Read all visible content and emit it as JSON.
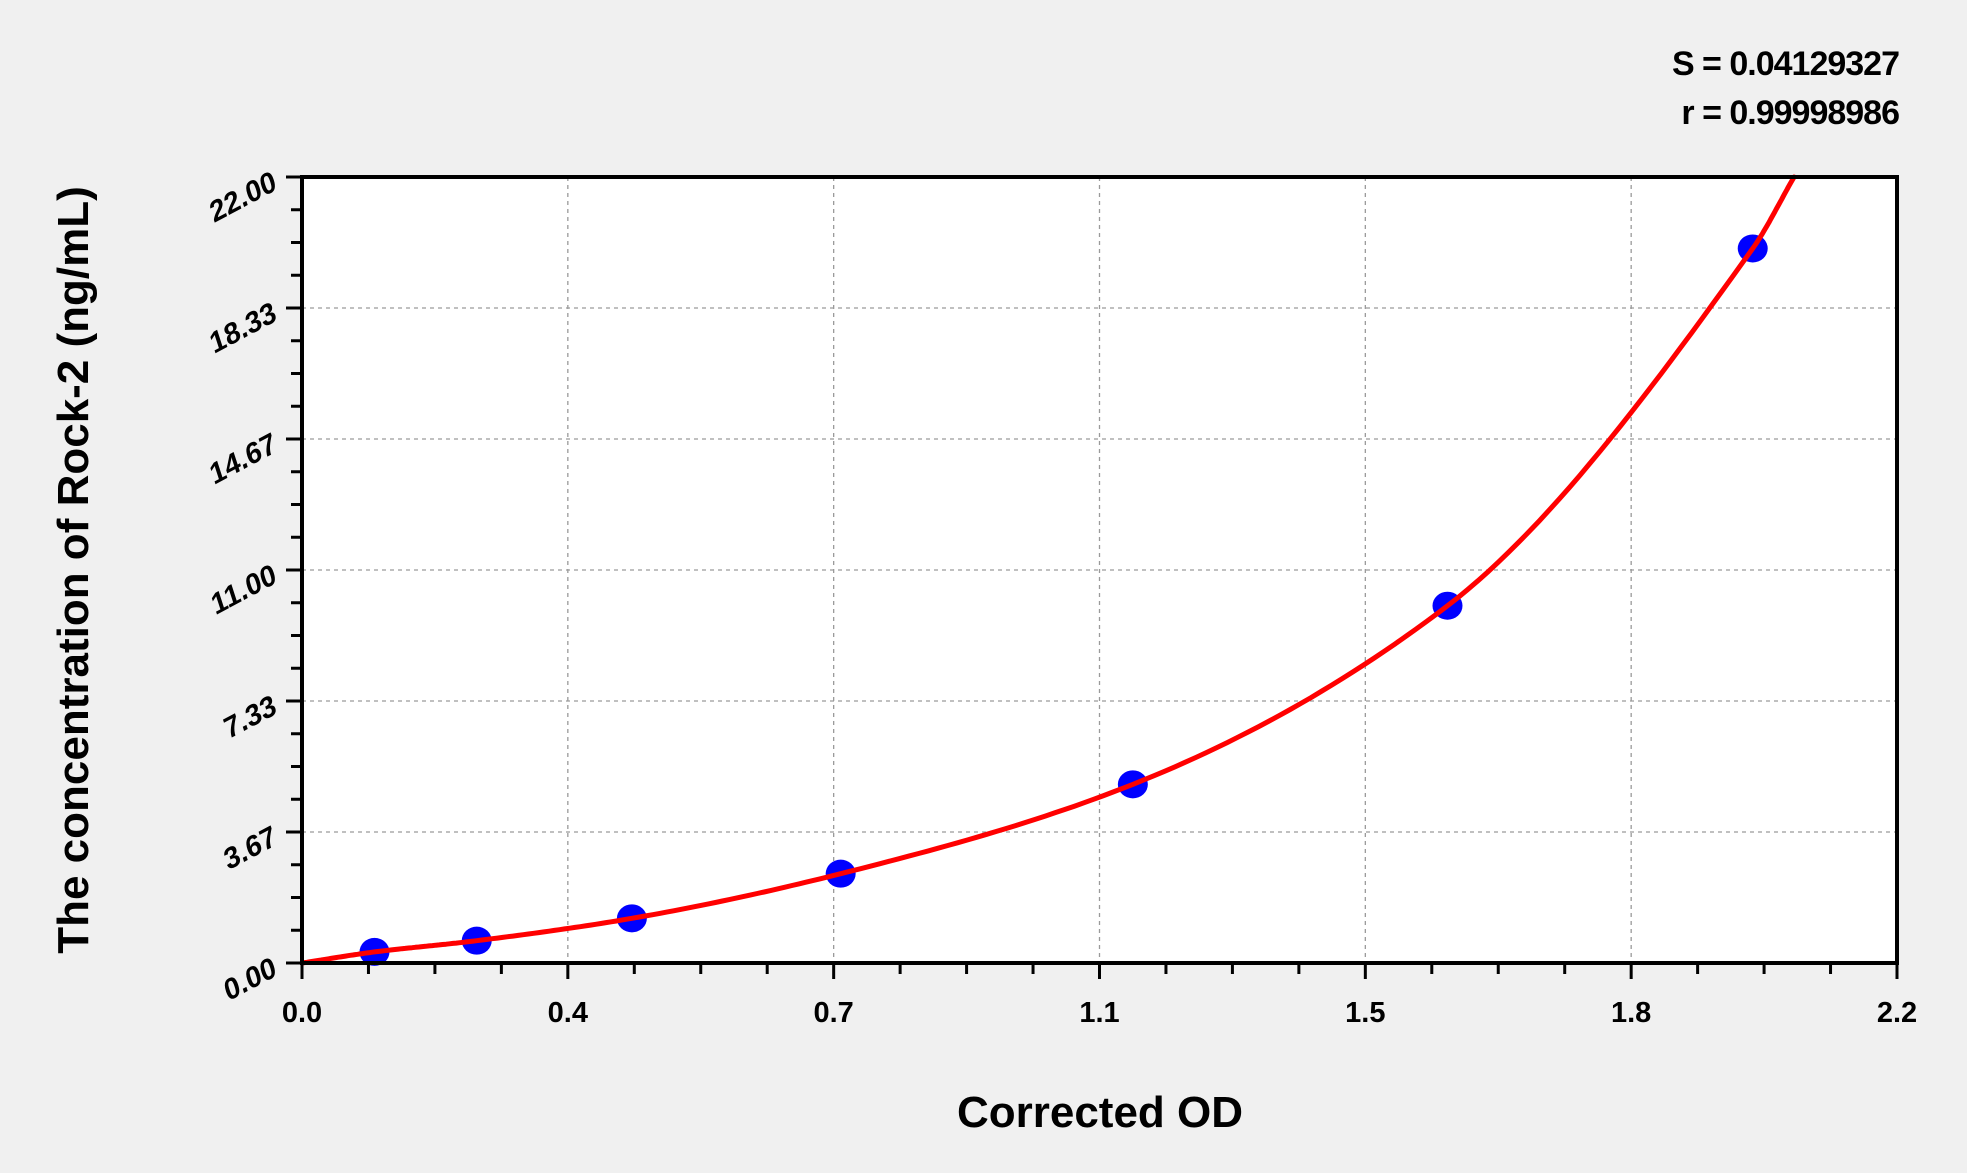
{
  "chart_data": {
    "type": "scatter",
    "title": "",
    "xlabel": "Corrected OD",
    "ylabel": "The concentration of Rock-2 (ng/mL)",
    "xlim": [
      0.0,
      2.2
    ],
    "ylim": [
      0.0,
      22.0
    ],
    "x_ticks": [
      "0.0",
      "0.4",
      "0.7",
      "1.1",
      "1.5",
      "1.8",
      "2.2"
    ],
    "y_ticks": [
      "0.00",
      "3.67",
      "7.33",
      "11.00",
      "14.67",
      "18.33",
      "22.00"
    ],
    "grid": true,
    "annotations": {
      "s": "S = 0.04129327",
      "r": "r = 0.99998986"
    },
    "points": {
      "color": "#0000ff",
      "x": [
        0.1,
        0.241,
        0.455,
        0.743,
        1.146,
        1.58,
        2.001
      ],
      "y": [
        0.31,
        0.625,
        1.25,
        2.5,
        5.0,
        10.0,
        20.0
      ]
    },
    "fit_curve": {
      "color": "#ff0000",
      "x": [
        0.0,
        0.1,
        0.241,
        0.455,
        0.743,
        1.146,
        1.58,
        2.001,
        2.058
      ],
      "y": [
        0.0,
        0.31,
        0.625,
        1.25,
        2.5,
        5.0,
        10.0,
        20.0,
        22.0
      ]
    }
  }
}
